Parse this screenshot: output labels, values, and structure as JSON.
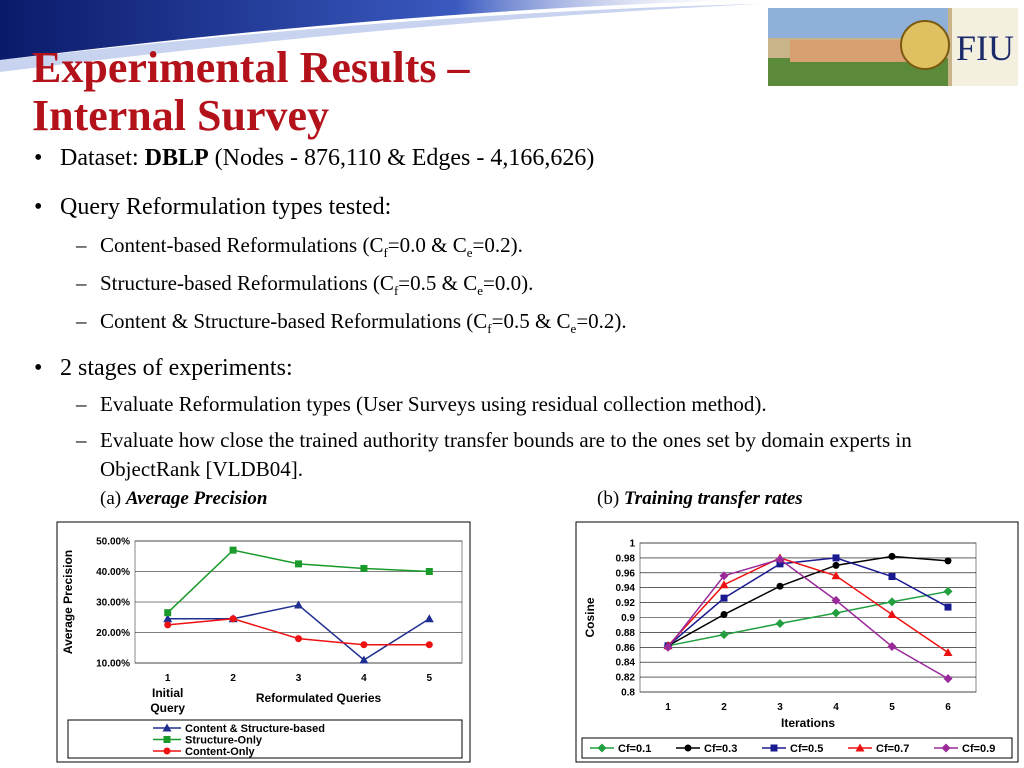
{
  "slide": {
    "title": [
      "Experimental Results –",
      "Internal Survey"
    ],
    "logo_text": "FIU",
    "bullets": [
      {
        "parts": [
          "Dataset: ",
          "DBLP",
          " (Nodes - 876,110 & Edges - 4,166,626)"
        ]
      },
      {
        "parts": [
          "Query Reformulation types tested:"
        ],
        "subs": [
          [
            "Content-based Reformulations (C",
            "f",
            "=0.0 & C",
            "e",
            "=0.2)."
          ],
          [
            "Structure-based Reformulations (C",
            "f",
            "=0.5 & C",
            "e",
            "=0.0)."
          ],
          [
            "Content & Structure-based Reformulations (C",
            "f",
            "=0.5 & C",
            "e",
            "=0.2)."
          ]
        ]
      },
      {
        "parts": [
          "2 stages of experiments:"
        ],
        "subs": [
          [
            "Evaluate Reformulation types (User Surveys using residual collection method)."
          ],
          [
            "Evaluate how close the trained authority transfer bounds are to the ones set by domain experts in ObjectRank [VLDB04]."
          ]
        ]
      }
    ],
    "captions": [
      [
        "(a) ",
        "Average Precision"
      ],
      [
        "(b) ",
        "Training transfer rates"
      ]
    ]
  },
  "chart_data": [
    {
      "type": "line",
      "ylabel": "Average Precision",
      "xlabel": "Reformulated Queries",
      "annotation": [
        "Initial",
        "Query"
      ],
      "categories": [
        "1",
        "2",
        "3",
        "4",
        "5"
      ],
      "ylim": [
        10,
        50
      ],
      "yticks": [
        {
          "value": 10,
          "label": "10.00%"
        },
        {
          "value": 20,
          "label": "20.00%"
        },
        {
          "value": 30,
          "label": "30.00%"
        },
        {
          "value": 40,
          "label": "40.00%"
        },
        {
          "value": 50,
          "label": "50.00%"
        }
      ],
      "grid": true,
      "legend": "bottom",
      "series": [
        {
          "name": "Content & Structure-based",
          "color": "#1f2f8f",
          "marker": "triangle",
          "values": [
            24.5,
            24.5,
            29,
            11,
            24.5
          ]
        },
        {
          "name": "Structure-Only",
          "color": "#1a9a2a",
          "marker": "square",
          "values": [
            26.5,
            47,
            42.5,
            41,
            40
          ]
        },
        {
          "name": "Content-Only",
          "color": "#ee1111",
          "marker": "circle",
          "values": [
            22.5,
            24.5,
            18,
            16,
            16
          ]
        }
      ]
    },
    {
      "type": "line",
      "ylabel": "Cosine",
      "xlabel": "Iterations",
      "categories": [
        "1",
        "2",
        "3",
        "4",
        "5",
        "6"
      ],
      "ylim": [
        0.8,
        1
      ],
      "yticks": [
        0.8,
        0.82,
        0.84,
        0.86,
        0.88,
        0.9,
        0.92,
        0.94,
        0.96,
        0.98,
        1
      ],
      "grid": true,
      "legend": "bottom",
      "series": [
        {
          "name": "Cf=0.1",
          "color": "#22a040",
          "marker": "diamond",
          "values": [
            0.862,
            0.877,
            0.892,
            0.906,
            0.921,
            0.935
          ]
        },
        {
          "name": "Cf=0.3",
          "color": "#000000",
          "marker": "circle",
          "values": [
            0.862,
            0.904,
            0.942,
            0.97,
            0.982,
            0.976
          ]
        },
        {
          "name": "Cf=0.5",
          "color": "#1a1a90",
          "marker": "square",
          "values": [
            0.862,
            0.926,
            0.972,
            0.98,
            0.955,
            0.914
          ]
        },
        {
          "name": "Cf=0.7",
          "color": "#ee1111",
          "marker": "triangle",
          "values": [
            0.862,
            0.944,
            0.98,
            0.956,
            0.904,
            0.853
          ]
        },
        {
          "name": "Cf=0.9",
          "color": "#9a2a9a",
          "marker": "diamond",
          "values": [
            0.86,
            0.956,
            0.978,
            0.923,
            0.861,
            0.818
          ]
        }
      ]
    }
  ]
}
